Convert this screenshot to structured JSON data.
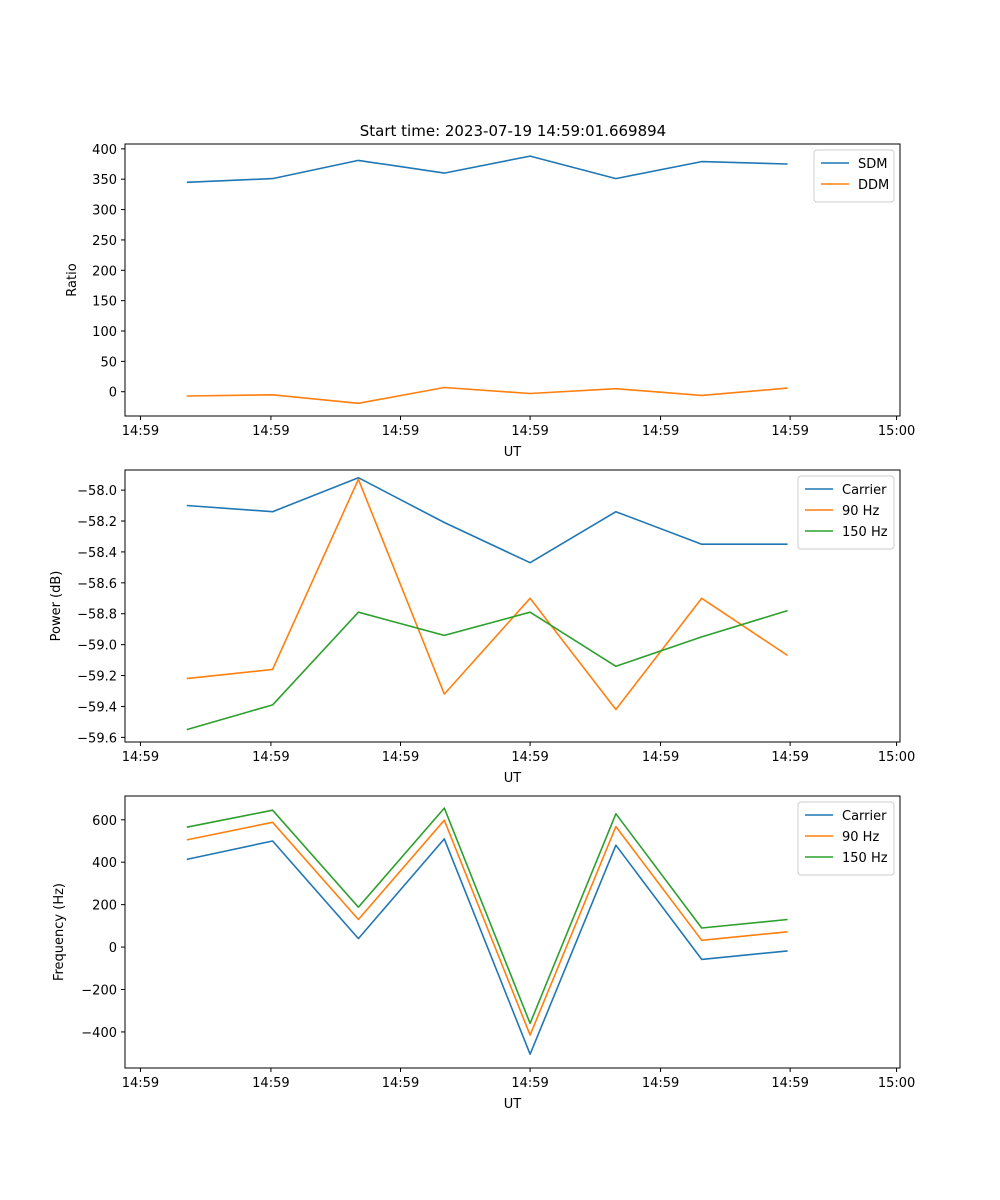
{
  "figure_title": "Start time: 2023-07-19 14:59:01.669894",
  "colors": {
    "blue": "#1f77b4",
    "orange": "#ff7f0e",
    "green": "#2ca02c"
  },
  "chart_data": [
    {
      "type": "line",
      "title": "Start time: 2023-07-19 14:59:01.669894",
      "xlabel": "UT",
      "ylabel": "Ratio",
      "x": [
        1,
        2,
        3,
        4,
        5,
        6,
        7,
        8
      ],
      "xlim": [
        0.28,
        9.31
      ],
      "x_tick_positions": [
        0.46,
        1.98,
        3.49,
        5.0,
        6.52,
        8.03,
        9.27
      ],
      "x_tick_labels": [
        "14:59",
        "14:59",
        "14:59",
        "14:59",
        "14:59",
        "14:59",
        "15:00"
      ],
      "ylim": [
        -40,
        408
      ],
      "y_ticks": [
        400,
        350,
        300,
        250,
        200,
        150,
        100,
        50,
        0
      ],
      "y_tick_labels": [
        "400",
        "350",
        "300",
        "250",
        "200",
        "150",
        "100",
        "50",
        "0"
      ],
      "legend_position": "top-right",
      "series": [
        {
          "name": "SDM",
          "color": "#1f77b4",
          "values": [
            345,
            351,
            381,
            360,
            388,
            351,
            379,
            375
          ]
        },
        {
          "name": "DDM",
          "color": "#ff7f0e",
          "values": [
            -7,
            -5,
            -19,
            7,
            -3,
            5,
            -6,
            6
          ]
        }
      ]
    },
    {
      "type": "line",
      "title": "",
      "xlabel": "UT",
      "ylabel": "Power (dB)",
      "x": [
        1,
        2,
        3,
        4,
        5,
        6,
        7,
        8
      ],
      "xlim": [
        0.28,
        9.31
      ],
      "x_tick_positions": [
        0.46,
        1.98,
        3.49,
        5.0,
        6.52,
        8.03,
        9.27
      ],
      "x_tick_labels": [
        "14:59",
        "14:59",
        "14:59",
        "14:59",
        "14:59",
        "14:59",
        "15:00"
      ],
      "ylim": [
        -59.63,
        -57.87
      ],
      "y_ticks": [
        -58.0,
        -58.2,
        -58.4,
        -58.6,
        -58.8,
        -59.0,
        -59.2,
        -59.4,
        -59.6
      ],
      "y_tick_labels": [
        "−58.0",
        "−58.2",
        "−58.4",
        "−58.6",
        "−58.8",
        "−59.0",
        "−59.2",
        "−59.4",
        "−59.6"
      ],
      "legend_position": "top-right",
      "series": [
        {
          "name": "Carrier",
          "color": "#1f77b4",
          "values": [
            -58.1,
            -58.14,
            -57.92,
            -58.21,
            -58.47,
            -58.14,
            -58.35,
            -58.35
          ]
        },
        {
          "name": "90 Hz",
          "color": "#ff7f0e",
          "values": [
            -59.22,
            -59.16,
            -57.93,
            -59.32,
            -58.7,
            -59.42,
            -58.7,
            -59.07
          ]
        },
        {
          "name": "150 Hz",
          "color": "#2ca02c",
          "values": [
            -59.55,
            -59.39,
            -58.79,
            -58.94,
            -58.79,
            -59.14,
            -58.95,
            -58.78
          ]
        }
      ]
    },
    {
      "type": "line",
      "title": "",
      "xlabel": "UT",
      "ylabel": "Frequency (Hz)",
      "x": [
        1,
        2,
        3,
        4,
        5,
        6,
        7,
        8
      ],
      "xlim": [
        0.28,
        9.31
      ],
      "x_tick_positions": [
        0.46,
        1.98,
        3.49,
        5.0,
        6.52,
        8.03,
        9.27
      ],
      "x_tick_labels": [
        "14:59",
        "14:59",
        "14:59",
        "14:59",
        "14:59",
        "14:59",
        "15:00"
      ],
      "ylim": [
        -570,
        712
      ],
      "y_ticks": [
        600,
        400,
        200,
        0,
        -200,
        -400
      ],
      "y_tick_labels": [
        "600",
        "400",
        "200",
        "0",
        "−200",
        "−400"
      ],
      "legend_position": "top-right",
      "series": [
        {
          "name": "Carrier",
          "color": "#1f77b4",
          "values": [
            413,
            500,
            40,
            510,
            -505,
            480,
            -58,
            -18
          ]
        },
        {
          "name": "90 Hz",
          "color": "#ff7f0e",
          "values": [
            505,
            588,
            130,
            598,
            -415,
            568,
            32,
            72
          ]
        },
        {
          "name": "150 Hz",
          "color": "#2ca02c",
          "values": [
            565,
            645,
            188,
            655,
            -360,
            628,
            90,
            130
          ]
        }
      ]
    }
  ]
}
